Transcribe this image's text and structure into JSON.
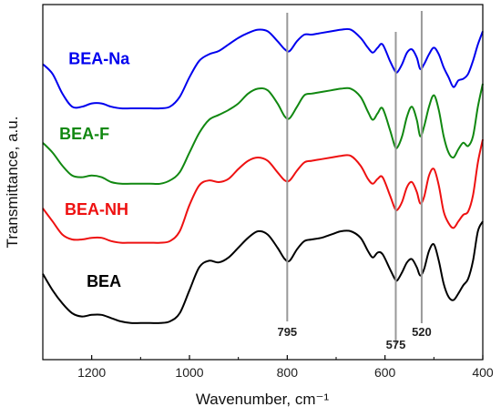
{
  "chart_data": {
    "type": "line",
    "title": "",
    "xlabel": "Wavenumber, cm⁻¹",
    "ylabel": "Transmittance, a.u.",
    "xlim": [
      1300,
      400
    ],
    "x_reversed": true,
    "ylim": [
      0,
      100
    ],
    "grid": false,
    "legend": "none",
    "x_ticks": [
      1200,
      1000,
      800,
      600,
      400
    ],
    "annotations": [
      {
        "label": "795",
        "x": 800
      },
      {
        "label": "575",
        "x": 578
      },
      {
        "label": "520",
        "x": 525
      }
    ],
    "series": [
      {
        "name": "BEA-Na",
        "color": "#0000ee",
        "label_at": [
          1185,
          86
        ],
        "points": [
          [
            1300,
            86
          ],
          [
            1280,
            83
          ],
          [
            1260,
            77
          ],
          [
            1240,
            73
          ],
          [
            1220,
            73
          ],
          [
            1200,
            74
          ],
          [
            1180,
            74
          ],
          [
            1160,
            73
          ],
          [
            1140,
            72.5
          ],
          [
            1120,
            72.5
          ],
          [
            1100,
            72.5
          ],
          [
            1080,
            72.5
          ],
          [
            1060,
            72.5
          ],
          [
            1040,
            73
          ],
          [
            1020,
            76
          ],
          [
            1000,
            82
          ],
          [
            980,
            87
          ],
          [
            960,
            89
          ],
          [
            940,
            90
          ],
          [
            920,
            92
          ],
          [
            900,
            94
          ],
          [
            880,
            95.5
          ],
          [
            860,
            96.5
          ],
          [
            840,
            96
          ],
          [
            820,
            93
          ],
          [
            805,
            90.5
          ],
          [
            795,
            90
          ],
          [
            780,
            93
          ],
          [
            765,
            95
          ],
          [
            750,
            95
          ],
          [
            730,
            95.5
          ],
          [
            710,
            96
          ],
          [
            690,
            96.5
          ],
          [
            670,
            96.5
          ],
          [
            650,
            94
          ],
          [
            635,
            91
          ],
          [
            625,
            89.5
          ],
          [
            615,
            91
          ],
          [
            605,
            92
          ],
          [
            590,
            87
          ],
          [
            580,
            84
          ],
          [
            575,
            83.5
          ],
          [
            565,
            86
          ],
          [
            555,
            89.5
          ],
          [
            545,
            90.5
          ],
          [
            535,
            88
          ],
          [
            528,
            84.5
          ],
          [
            520,
            86
          ],
          [
            510,
            89
          ],
          [
            500,
            91
          ],
          [
            490,
            89
          ],
          [
            480,
            85
          ],
          [
            470,
            82
          ],
          [
            460,
            79
          ],
          [
            450,
            81
          ],
          [
            440,
            81.5
          ],
          [
            430,
            83
          ],
          [
            420,
            87
          ],
          [
            410,
            92
          ],
          [
            400,
            96
          ]
        ]
      },
      {
        "name": "BEA-F",
        "color": "#118811",
        "label_at": [
          1215,
          63
        ],
        "points": [
          [
            1300,
            62
          ],
          [
            1280,
            59
          ],
          [
            1260,
            55
          ],
          [
            1240,
            52
          ],
          [
            1220,
            51.5
          ],
          [
            1200,
            52
          ],
          [
            1180,
            51.5
          ],
          [
            1160,
            50
          ],
          [
            1140,
            49.5
          ],
          [
            1120,
            49.5
          ],
          [
            1100,
            49.5
          ],
          [
            1080,
            49.5
          ],
          [
            1060,
            49.5
          ],
          [
            1040,
            50.5
          ],
          [
            1020,
            53
          ],
          [
            1000,
            59
          ],
          [
            980,
            65
          ],
          [
            960,
            69
          ],
          [
            940,
            70.5
          ],
          [
            920,
            72
          ],
          [
            900,
            74
          ],
          [
            880,
            77
          ],
          [
            860,
            78.5
          ],
          [
            840,
            78
          ],
          [
            820,
            74
          ],
          [
            805,
            70
          ],
          [
            795,
            69.5
          ],
          [
            780,
            73
          ],
          [
            765,
            76.5
          ],
          [
            750,
            77
          ],
          [
            730,
            77.5
          ],
          [
            710,
            78
          ],
          [
            690,
            78.5
          ],
          [
            670,
            78.5
          ],
          [
            650,
            76
          ],
          [
            635,
            71.5
          ],
          [
            625,
            69
          ],
          [
            615,
            71
          ],
          [
            605,
            72.5
          ],
          [
            590,
            66
          ],
          [
            580,
            61
          ],
          [
            575,
            60.5
          ],
          [
            565,
            64
          ],
          [
            555,
            70
          ],
          [
            545,
            73
          ],
          [
            535,
            69
          ],
          [
            528,
            64
          ],
          [
            520,
            67
          ],
          [
            510,
            73
          ],
          [
            500,
            76.5
          ],
          [
            490,
            72
          ],
          [
            480,
            64
          ],
          [
            470,
            59
          ],
          [
            460,
            57.5
          ],
          [
            450,
            60
          ],
          [
            440,
            62
          ],
          [
            430,
            61
          ],
          [
            420,
            64
          ],
          [
            410,
            73
          ],
          [
            400,
            80
          ]
        ]
      },
      {
        "name": "BEA-NH",
        "color": "#ee1111",
        "label_at": [
          1190,
          40
        ],
        "points": [
          [
            1300,
            42
          ],
          [
            1280,
            38
          ],
          [
            1260,
            34
          ],
          [
            1240,
            32.5
          ],
          [
            1220,
            32.5
          ],
          [
            1200,
            33
          ],
          [
            1180,
            33
          ],
          [
            1160,
            32
          ],
          [
            1140,
            31.5
          ],
          [
            1120,
            31.5
          ],
          [
            1100,
            31.5
          ],
          [
            1080,
            31.5
          ],
          [
            1060,
            31.5
          ],
          [
            1040,
            32
          ],
          [
            1020,
            35
          ],
          [
            1000,
            43
          ],
          [
            980,
            49
          ],
          [
            960,
            50.5
          ],
          [
            940,
            50
          ],
          [
            920,
            51
          ],
          [
            900,
            54
          ],
          [
            880,
            56.5
          ],
          [
            860,
            57.5
          ],
          [
            840,
            56.5
          ],
          [
            820,
            53
          ],
          [
            805,
            50.5
          ],
          [
            795,
            50.5
          ],
          [
            780,
            53.5
          ],
          [
            765,
            56
          ],
          [
            750,
            56.5
          ],
          [
            730,
            57
          ],
          [
            710,
            57.5
          ],
          [
            690,
            58
          ],
          [
            670,
            58
          ],
          [
            650,
            55
          ],
          [
            635,
            51
          ],
          [
            625,
            49.5
          ],
          [
            615,
            51
          ],
          [
            605,
            51.5
          ],
          [
            590,
            46
          ],
          [
            580,
            42
          ],
          [
            575,
            41.5
          ],
          [
            565,
            44
          ],
          [
            555,
            48.5
          ],
          [
            545,
            50
          ],
          [
            535,
            47
          ],
          [
            528,
            43.5
          ],
          [
            520,
            45.5
          ],
          [
            510,
            52
          ],
          [
            500,
            54
          ],
          [
            490,
            49
          ],
          [
            480,
            41
          ],
          [
            470,
            37.5
          ],
          [
            460,
            36
          ],
          [
            450,
            38
          ],
          [
            440,
            40
          ],
          [
            430,
            41
          ],
          [
            420,
            46
          ],
          [
            410,
            56
          ],
          [
            400,
            63
          ]
        ]
      },
      {
        "name": "BEA",
        "color": "#000000",
        "label_at": [
          1175,
          18
        ],
        "points": [
          [
            1300,
            22
          ],
          [
            1280,
            17
          ],
          [
            1260,
            13
          ],
          [
            1240,
            10
          ],
          [
            1220,
            9
          ],
          [
            1200,
            9.5
          ],
          [
            1180,
            9.5
          ],
          [
            1160,
            8.5
          ],
          [
            1140,
            7.5
          ],
          [
            1120,
            7
          ],
          [
            1100,
            7
          ],
          [
            1080,
            7
          ],
          [
            1060,
            7
          ],
          [
            1040,
            7.5
          ],
          [
            1020,
            10
          ],
          [
            1000,
            17
          ],
          [
            980,
            24
          ],
          [
            960,
            26
          ],
          [
            940,
            25.5
          ],
          [
            920,
            27
          ],
          [
            900,
            30
          ],
          [
            880,
            33
          ],
          [
            860,
            35
          ],
          [
            840,
            34
          ],
          [
            820,
            30
          ],
          [
            805,
            26.5
          ],
          [
            795,
            26
          ],
          [
            780,
            29.5
          ],
          [
            765,
            32
          ],
          [
            750,
            32.5
          ],
          [
            730,
            33
          ],
          [
            710,
            34
          ],
          [
            690,
            35
          ],
          [
            670,
            35
          ],
          [
            650,
            33
          ],
          [
            635,
            29
          ],
          [
            625,
            27
          ],
          [
            615,
            28.5
          ],
          [
            605,
            28
          ],
          [
            590,
            23.5
          ],
          [
            580,
            20.5
          ],
          [
            575,
            20
          ],
          [
            565,
            22.5
          ],
          [
            555,
            25.5
          ],
          [
            545,
            26.5
          ],
          [
            535,
            24
          ],
          [
            528,
            21.5
          ],
          [
            520,
            23.5
          ],
          [
            510,
            29
          ],
          [
            500,
            31
          ],
          [
            490,
            26
          ],
          [
            480,
            19
          ],
          [
            470,
            15
          ],
          [
            460,
            14
          ],
          [
            450,
            16
          ],
          [
            440,
            18.5
          ],
          [
            430,
            20.5
          ],
          [
            420,
            26
          ],
          [
            410,
            35
          ],
          [
            400,
            38
          ]
        ]
      }
    ]
  }
}
